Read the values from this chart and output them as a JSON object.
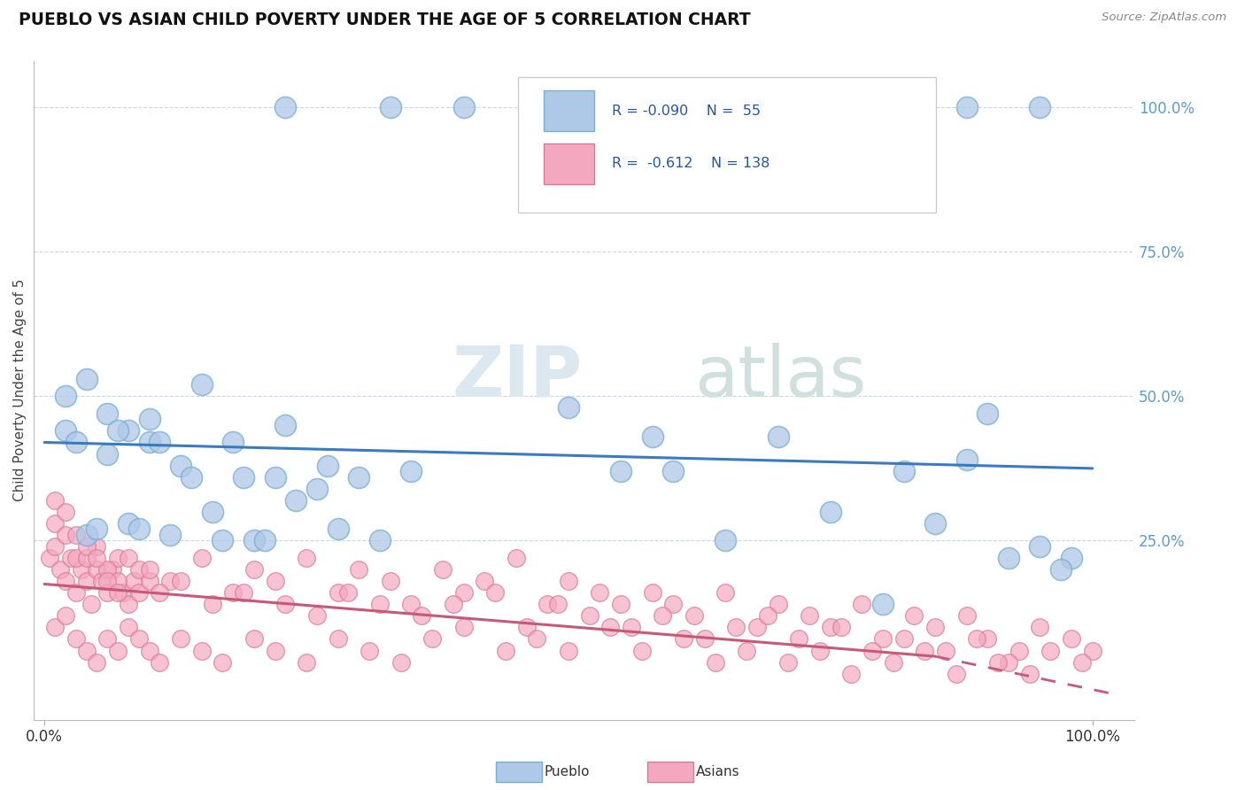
{
  "title": "PUEBLO VS ASIAN CHILD POVERTY UNDER THE AGE OF 5 CORRELATION CHART",
  "source": "Source: ZipAtlas.com",
  "ylabel": "Child Poverty Under the Age of 5",
  "watermark_zip": "ZIP",
  "watermark_atlas": "atlas",
  "pueblo_color": "#aec8e8",
  "pueblo_edge": "#7aaed0",
  "asian_color": "#f4a8c0",
  "asian_edge": "#d87898",
  "pueblo_line_color": "#3a7bbf",
  "asian_line_color": "#c85878",
  "legend_R_color": "#2255aa",
  "legend_N_color": "#2255aa",
  "pueblo_trend_y0": 0.42,
  "pueblo_trend_y1": 0.375,
  "asian_trend_y0": 0.175,
  "asian_trend_y1": 0.05,
  "asian_trend_solid_end_x": 0.85,
  "asian_trend_dashed_end_x": 1.02,
  "asian_trend_dashed_end_y": -0.015,
  "ylim_min": -0.06,
  "ylim_max": 1.08,
  "xlim_min": -0.01,
  "xlim_max": 1.04,
  "pueblo_x": [
    0.02,
    0.04,
    0.06,
    0.08,
    0.1,
    0.13,
    0.15,
    0.18,
    0.04,
    0.08,
    0.12,
    0.16,
    0.2,
    0.24,
    0.28,
    0.32,
    0.02,
    0.06,
    0.1,
    0.14,
    0.22,
    0.26,
    0.3,
    0.5,
    0.58,
    0.7,
    0.82,
    0.9,
    0.95,
    0.98,
    0.03,
    0.07,
    0.11,
    0.19,
    0.23,
    0.27,
    0.35,
    0.6,
    0.75,
    0.85,
    0.92,
    0.97,
    0.05,
    0.09,
    0.17,
    0.21,
    0.55,
    0.65,
    0.8,
    0.88,
    0.23,
    0.33,
    0.4,
    0.88,
    0.95
  ],
  "pueblo_y": [
    0.5,
    0.53,
    0.47,
    0.44,
    0.46,
    0.38,
    0.52,
    0.42,
    0.26,
    0.28,
    0.26,
    0.3,
    0.25,
    0.32,
    0.27,
    0.25,
    0.44,
    0.4,
    0.42,
    0.36,
    0.36,
    0.34,
    0.36,
    0.48,
    0.43,
    0.43,
    0.37,
    0.47,
    0.24,
    0.22,
    0.42,
    0.44,
    0.42,
    0.36,
    0.45,
    0.38,
    0.37,
    0.37,
    0.3,
    0.28,
    0.22,
    0.2,
    0.27,
    0.27,
    0.25,
    0.25,
    0.37,
    0.25,
    0.14,
    0.39,
    1.0,
    1.0,
    1.0,
    1.0,
    1.0
  ],
  "asian_x": [
    0.005,
    0.01,
    0.015,
    0.02,
    0.025,
    0.03,
    0.035,
    0.04,
    0.045,
    0.05,
    0.055,
    0.06,
    0.065,
    0.07,
    0.075,
    0.08,
    0.085,
    0.09,
    0.01,
    0.02,
    0.03,
    0.04,
    0.05,
    0.06,
    0.07,
    0.08,
    0.09,
    0.1,
    0.01,
    0.02,
    0.03,
    0.04,
    0.05,
    0.06,
    0.07,
    0.1,
    0.12,
    0.15,
    0.18,
    0.2,
    0.22,
    0.25,
    0.28,
    0.3,
    0.33,
    0.35,
    0.38,
    0.4,
    0.42,
    0.45,
    0.48,
    0.5,
    0.53,
    0.55,
    0.58,
    0.6,
    0.62,
    0.65,
    0.68,
    0.7,
    0.73,
    0.75,
    0.78,
    0.8,
    0.83,
    0.85,
    0.88,
    0.9,
    0.93,
    0.95,
    0.98,
    1.0,
    0.11,
    0.13,
    0.16,
    0.19,
    0.23,
    0.26,
    0.29,
    0.32,
    0.36,
    0.39,
    0.43,
    0.46,
    0.49,
    0.52,
    0.56,
    0.59,
    0.63,
    0.66,
    0.69,
    0.72,
    0.76,
    0.79,
    0.82,
    0.86,
    0.89,
    0.92,
    0.96,
    0.99,
    0.01,
    0.02,
    0.03,
    0.04,
    0.05,
    0.06,
    0.07,
    0.08,
    0.09,
    0.1,
    0.11,
    0.13,
    0.15,
    0.17,
    0.2,
    0.22,
    0.25,
    0.28,
    0.31,
    0.34,
    0.37,
    0.4,
    0.44,
    0.47,
    0.5,
    0.54,
    0.57,
    0.61,
    0.64,
    0.67,
    0.71,
    0.74,
    0.77,
    0.81,
    0.84,
    0.87,
    0.91,
    0.94
  ],
  "asian_y": [
    0.22,
    0.24,
    0.2,
    0.18,
    0.22,
    0.16,
    0.2,
    0.18,
    0.14,
    0.2,
    0.18,
    0.16,
    0.2,
    0.22,
    0.16,
    0.14,
    0.18,
    0.16,
    0.28,
    0.26,
    0.22,
    0.22,
    0.24,
    0.2,
    0.18,
    0.22,
    0.2,
    0.18,
    0.32,
    0.3,
    0.26,
    0.24,
    0.22,
    0.18,
    0.16,
    0.2,
    0.18,
    0.22,
    0.16,
    0.2,
    0.18,
    0.22,
    0.16,
    0.2,
    0.18,
    0.14,
    0.2,
    0.16,
    0.18,
    0.22,
    0.14,
    0.18,
    0.16,
    0.14,
    0.16,
    0.14,
    0.12,
    0.16,
    0.1,
    0.14,
    0.12,
    0.1,
    0.14,
    0.08,
    0.12,
    0.1,
    0.12,
    0.08,
    0.06,
    0.1,
    0.08,
    0.06,
    0.16,
    0.18,
    0.14,
    0.16,
    0.14,
    0.12,
    0.16,
    0.14,
    0.12,
    0.14,
    0.16,
    0.1,
    0.14,
    0.12,
    0.1,
    0.12,
    0.08,
    0.1,
    0.12,
    0.08,
    0.1,
    0.06,
    0.08,
    0.06,
    0.08,
    0.04,
    0.06,
    0.04,
    0.1,
    0.12,
    0.08,
    0.06,
    0.04,
    0.08,
    0.06,
    0.1,
    0.08,
    0.06,
    0.04,
    0.08,
    0.06,
    0.04,
    0.08,
    0.06,
    0.04,
    0.08,
    0.06,
    0.04,
    0.08,
    0.1,
    0.06,
    0.08,
    0.06,
    0.1,
    0.06,
    0.08,
    0.04,
    0.06,
    0.04,
    0.06,
    0.02,
    0.04,
    0.06,
    0.02,
    0.04,
    0.02
  ]
}
